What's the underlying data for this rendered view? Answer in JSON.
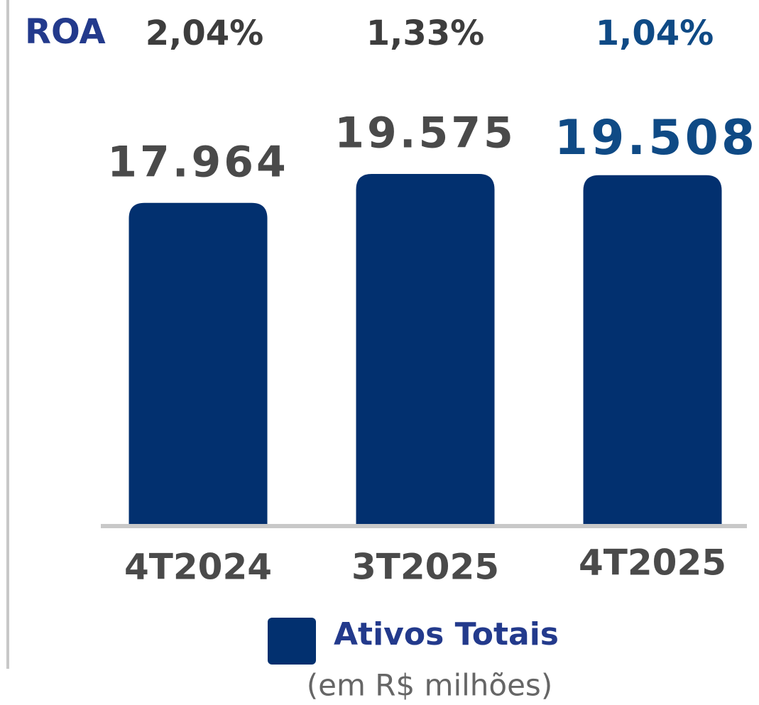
{
  "chart_data": {
    "type": "bar",
    "categories": [
      "4T2024",
      "3T2025",
      "4T2025"
    ],
    "series": [
      {
        "name": "Ativos Totais",
        "color": "#02306f",
        "values": [
          17964,
          19575,
          19508
        ],
        "value_labels": [
          "17.964",
          "19.575",
          "19.508"
        ],
        "label_colors": [
          "#4a4a4a",
          "#4a4a4a",
          "#0f4a85"
        ]
      }
    ],
    "subtitle": "(em R$ milhões)",
    "roa": {
      "label": "ROA",
      "values": [
        2.04,
        1.33,
        1.04
      ],
      "value_labels": [
        "2,04%",
        "1,33%",
        "1,04%"
      ],
      "label_colors": [
        "#3d3d3d",
        "#3d3d3d",
        "#0f4a85"
      ]
    }
  }
}
